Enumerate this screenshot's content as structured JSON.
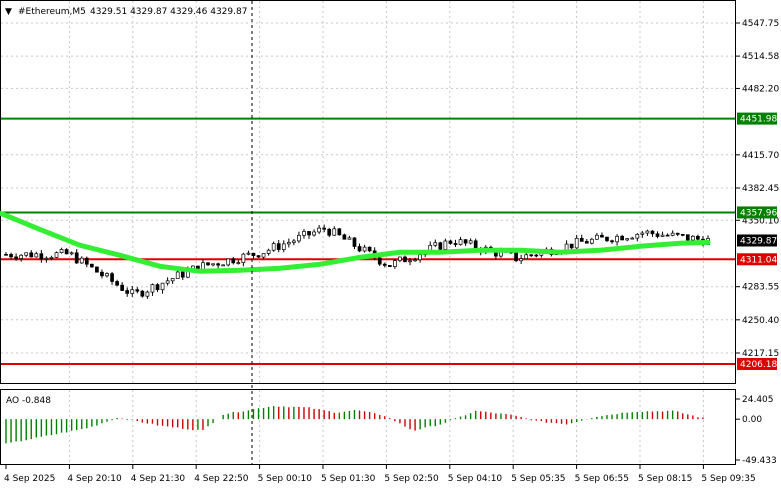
{
  "header": {
    "menu_glyph": "▼",
    "symbol": "#Ethereum,M5",
    "ohlc": "4329.51 4329.87 4329.46 4329.87"
  },
  "price_axis": {
    "ticks": [
      "4547.75",
      "4514.58",
      "4482.20",
      "4415.70",
      "4382.45",
      "4350.10",
      "4283.55",
      "4250.40",
      "4217.15"
    ]
  },
  "levels": [
    {
      "label": "4451.98",
      "color": "#008000"
    },
    {
      "label": "4357.96",
      "color": "#008000"
    },
    {
      "label": "4311.04",
      "color": "#dd0000"
    },
    {
      "label": "4206.18",
      "color": "#dd0000"
    }
  ],
  "current_price": {
    "label": "4329.87",
    "color": "#000000"
  },
  "ma_color": "#33ee33",
  "indicator": {
    "label": "AO -0.848",
    "ticks": [
      "24.405",
      "0.00",
      "-49.433"
    ],
    "up_color": "#008000",
    "down_color": "#cc0000"
  },
  "time_axis": {
    "labels": [
      "4 Sep 2025",
      "4 Sep 20:10",
      "4 Sep 21:30",
      "4 Sep 22:50",
      "5 Sep 00:10",
      "5 Sep 01:30",
      "5 Sep 02:50",
      "5 Sep 04:10",
      "5 Sep 05:35",
      "5 Sep 06:55",
      "5 Sep 08:15",
      "5 Sep 09:35"
    ]
  },
  "chart_data": {
    "type": "candlestick",
    "symbol": "#Ethereum",
    "timeframe": "M5",
    "y_range": [
      4196,
      4562
    ],
    "approx_close_path": [
      {
        "t": "4 Sep 2025",
        "price": 4316
      },
      {
        "t": "4 Sep 20:10",
        "price": 4316
      },
      {
        "t": "4 Sep 21:30",
        "price": 4275
      },
      {
        "t": "4 Sep 22:50",
        "price": 4303
      },
      {
        "t": "5 Sep 00:10",
        "price": 4318
      },
      {
        "t": "5 Sep 01:30",
        "price": 4342
      },
      {
        "t": "5 Sep 02:50",
        "price": 4305
      },
      {
        "t": "5 Sep 04:10",
        "price": 4330
      },
      {
        "t": "5 Sep 05:35",
        "price": 4312
      },
      {
        "t": "5 Sep 06:55",
        "price": 4328
      },
      {
        "t": "5 Sep 08:15",
        "price": 4338
      },
      {
        "t": "5 Sep 09:35",
        "price": 4329.87
      }
    ]
  }
}
